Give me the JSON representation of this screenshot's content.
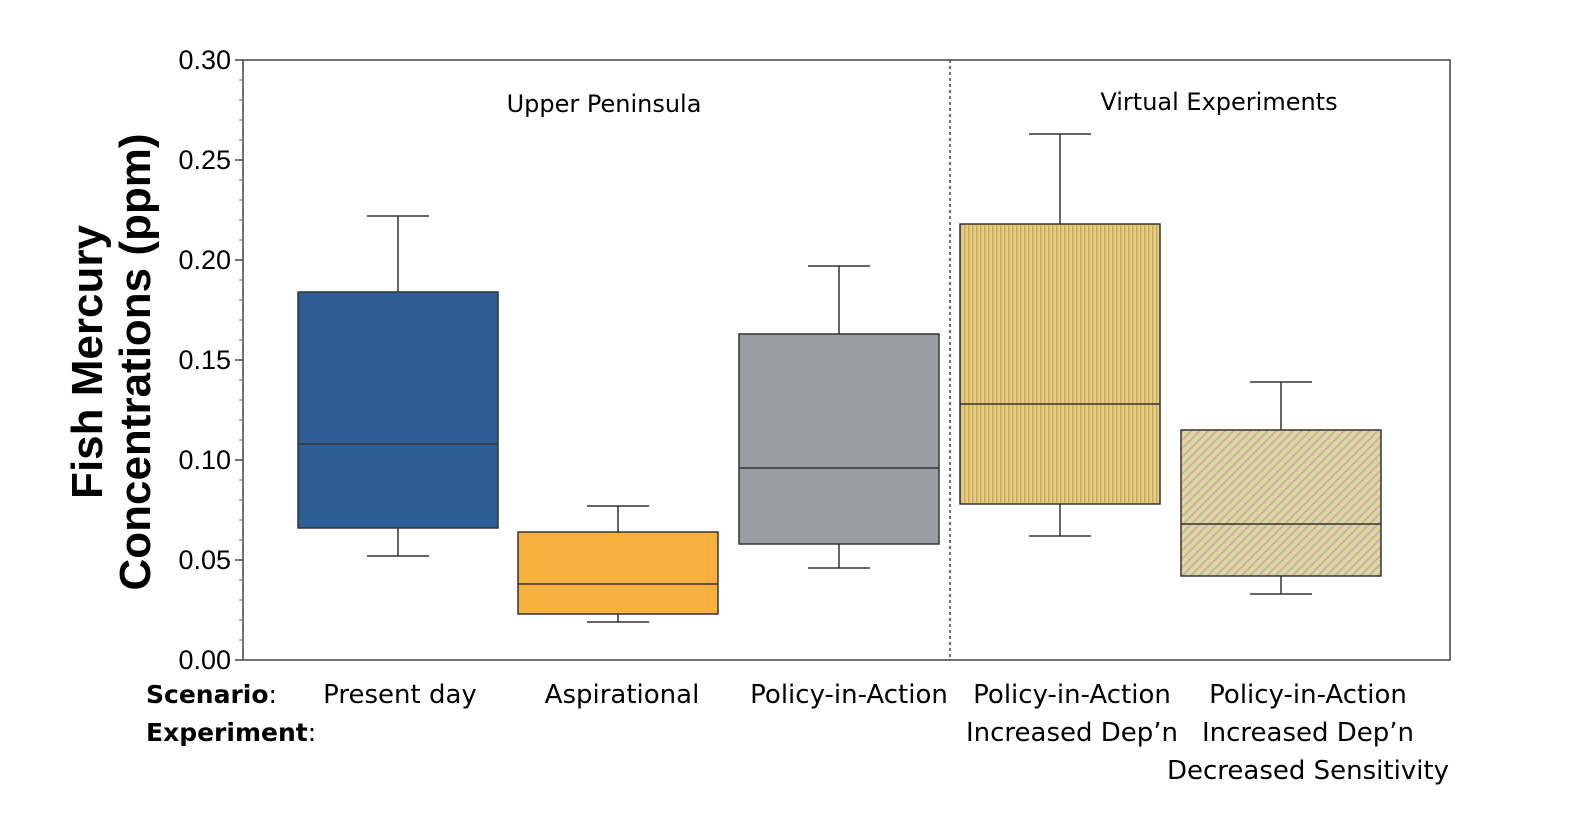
{
  "chart_data": {
    "type": "boxplot",
    "ylabel_line1": "Fish Mercury",
    "ylabel_line2": "Concentrations (ppm)",
    "ylim": [
      0,
      0.3
    ],
    "yticks": [
      "0.00",
      "0.05",
      "0.10",
      "0.15",
      "0.20",
      "0.25",
      "0.30"
    ],
    "ytick_values": [
      0,
      0.05,
      0.1,
      0.15,
      0.2,
      0.25,
      0.3
    ],
    "sections": [
      {
        "label": "Upper Peninsula",
        "categories": [
          0,
          1,
          2
        ]
      },
      {
        "label": "Virtual Experiments",
        "categories": [
          3,
          4
        ]
      }
    ],
    "row_labels": {
      "scenario_key": "Scenario",
      "experiment_key": "Experiment"
    },
    "categories": [
      {
        "scenario": "Present day",
        "experiment": [],
        "min": 0.052,
        "q1": 0.066,
        "median": 0.108,
        "q3": 0.184,
        "max": 0.222,
        "color": "#2f5d96",
        "pattern": "solid"
      },
      {
        "scenario": "Aspirational",
        "experiment": [],
        "min": 0.019,
        "q1": 0.023,
        "median": 0.038,
        "q3": 0.064,
        "max": 0.077,
        "color": "#f8b13f",
        "pattern": "solid"
      },
      {
        "scenario": "Policy-in-Action",
        "experiment": [],
        "min": 0.046,
        "q1": 0.058,
        "median": 0.096,
        "q3": 0.163,
        "max": 0.197,
        "color": "#9a9ea3",
        "pattern": "solid"
      },
      {
        "scenario": "Policy-in-Action",
        "experiment": [
          "Increased Dep’n"
        ],
        "min": 0.062,
        "q1": 0.078,
        "median": 0.128,
        "q3": 0.218,
        "max": 0.263,
        "color": "#e0c97e",
        "pattern": "vertical"
      },
      {
        "scenario": "Policy-in-Action",
        "experiment": [
          "Increased Dep’n",
          "Decreased Sensitivity"
        ],
        "min": 0.033,
        "q1": 0.042,
        "median": 0.068,
        "q3": 0.115,
        "max": 0.139,
        "color": "#e0c97e",
        "pattern": "diagonal"
      }
    ]
  }
}
